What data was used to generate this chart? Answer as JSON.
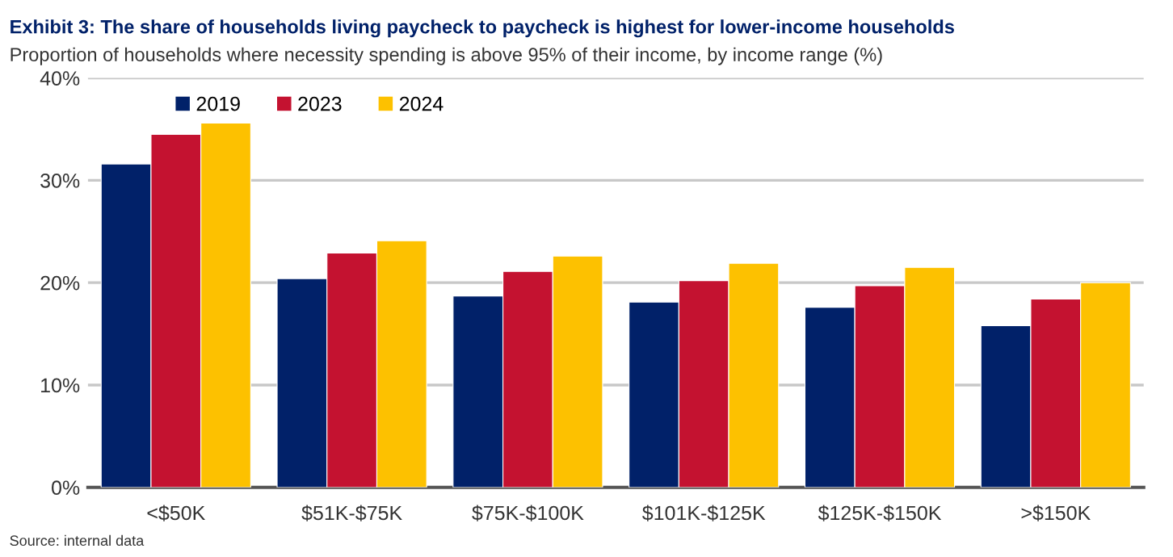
{
  "chart_data": {
    "type": "bar",
    "title": "Exhibit 3: The share of households living paycheck to paycheck is highest for lower-income households",
    "subtitle": "Proportion of households where necessity spending is above 95% of their income, by income range (%)",
    "categories": [
      "<$50K",
      "$51K-$75K",
      "$75K-$100K",
      "$101K-$125K",
      "$125K-$150K",
      ">$150K"
    ],
    "series": [
      {
        "name": "2019",
        "color": "#012169",
        "values": [
          31.6,
          20.4,
          18.7,
          18.1,
          17.6,
          15.8
        ]
      },
      {
        "name": "2023",
        "color": "#c41230",
        "values": [
          34.5,
          22.9,
          21.1,
          20.2,
          19.7,
          18.4
        ]
      },
      {
        "name": "2024",
        "color": "#fdc100",
        "values": [
          35.6,
          24.1,
          22.6,
          21.9,
          21.5,
          20.0
        ]
      }
    ],
    "ylim": [
      0,
      40
    ],
    "yticks": [
      {
        "value": 0,
        "label": "0%"
      },
      {
        "value": 10,
        "label": "10%"
      },
      {
        "value": 20,
        "label": "20%"
      },
      {
        "value": 30,
        "label": "30%"
      },
      {
        "value": 40,
        "label": "40%"
      }
    ],
    "grid": "y",
    "legend": "top",
    "annotations": [
      "Source: internal data"
    ]
  }
}
